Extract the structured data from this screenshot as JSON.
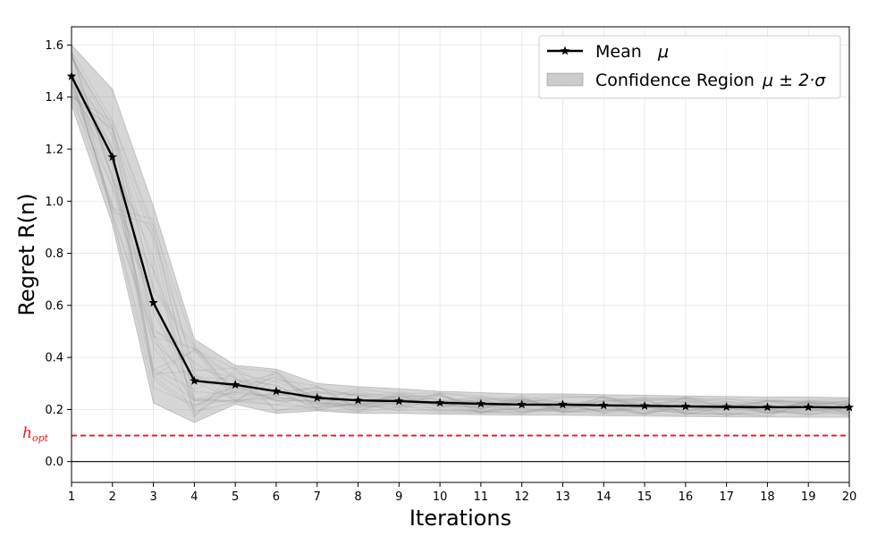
{
  "chart_data": {
    "type": "line",
    "xlabel": "Iterations",
    "ylabel": "Regret R(n)",
    "xlim": [
      1,
      20
    ],
    "ylim": [
      -0.08,
      1.67
    ],
    "x_ticks": [
      1,
      2,
      3,
      4,
      5,
      6,
      7,
      8,
      9,
      10,
      11,
      12,
      13,
      14,
      15,
      16,
      17,
      18,
      19,
      20
    ],
    "y_ticks": [
      0.0,
      0.2,
      0.4,
      0.6,
      0.8,
      1.0,
      1.2,
      1.4,
      1.6
    ],
    "grid": true,
    "legend_position": "top-right",
    "x": [
      1,
      2,
      3,
      4,
      5,
      6,
      7,
      8,
      9,
      10,
      11,
      12,
      13,
      14,
      15,
      16,
      17,
      18,
      19,
      20
    ],
    "series": [
      {
        "name": "Mean μ",
        "legend_label": "Mean",
        "legend_symbol": "μ",
        "marker": "star",
        "color": "#000000",
        "values": [
          1.48,
          1.17,
          0.61,
          0.31,
          0.295,
          0.27,
          0.245,
          0.235,
          0.232,
          0.226,
          0.222,
          0.219,
          0.219,
          0.216,
          0.214,
          0.212,
          0.21,
          0.209,
          0.209,
          0.208
        ]
      },
      {
        "name": "Confidence Region μ ± 2·σ",
        "legend_label": "Confidence Region",
        "legend_symbol": "μ ± 2·σ",
        "type": "area",
        "color": "#7f7f7f",
        "upper": [
          1.6,
          1.43,
          0.98,
          0.47,
          0.37,
          0.355,
          0.3,
          0.288,
          0.28,
          0.27,
          0.265,
          0.26,
          0.26,
          0.257,
          0.255,
          0.252,
          0.25,
          0.248,
          0.248,
          0.245
        ],
        "lower": [
          1.37,
          0.91,
          0.225,
          0.15,
          0.22,
          0.185,
          0.195,
          0.185,
          0.185,
          0.182,
          0.18,
          0.178,
          0.178,
          0.176,
          0.175,
          0.173,
          0.172,
          0.171,
          0.17,
          0.17
        ]
      }
    ],
    "individual_runs_count": 30,
    "reference_lines": [
      {
        "label": "h",
        "subscript": "opt",
        "y": 0.1,
        "color": "#e41a1c",
        "style": "dashed"
      },
      {
        "y": 0.0,
        "color": "#000000",
        "style": "solid"
      }
    ]
  }
}
